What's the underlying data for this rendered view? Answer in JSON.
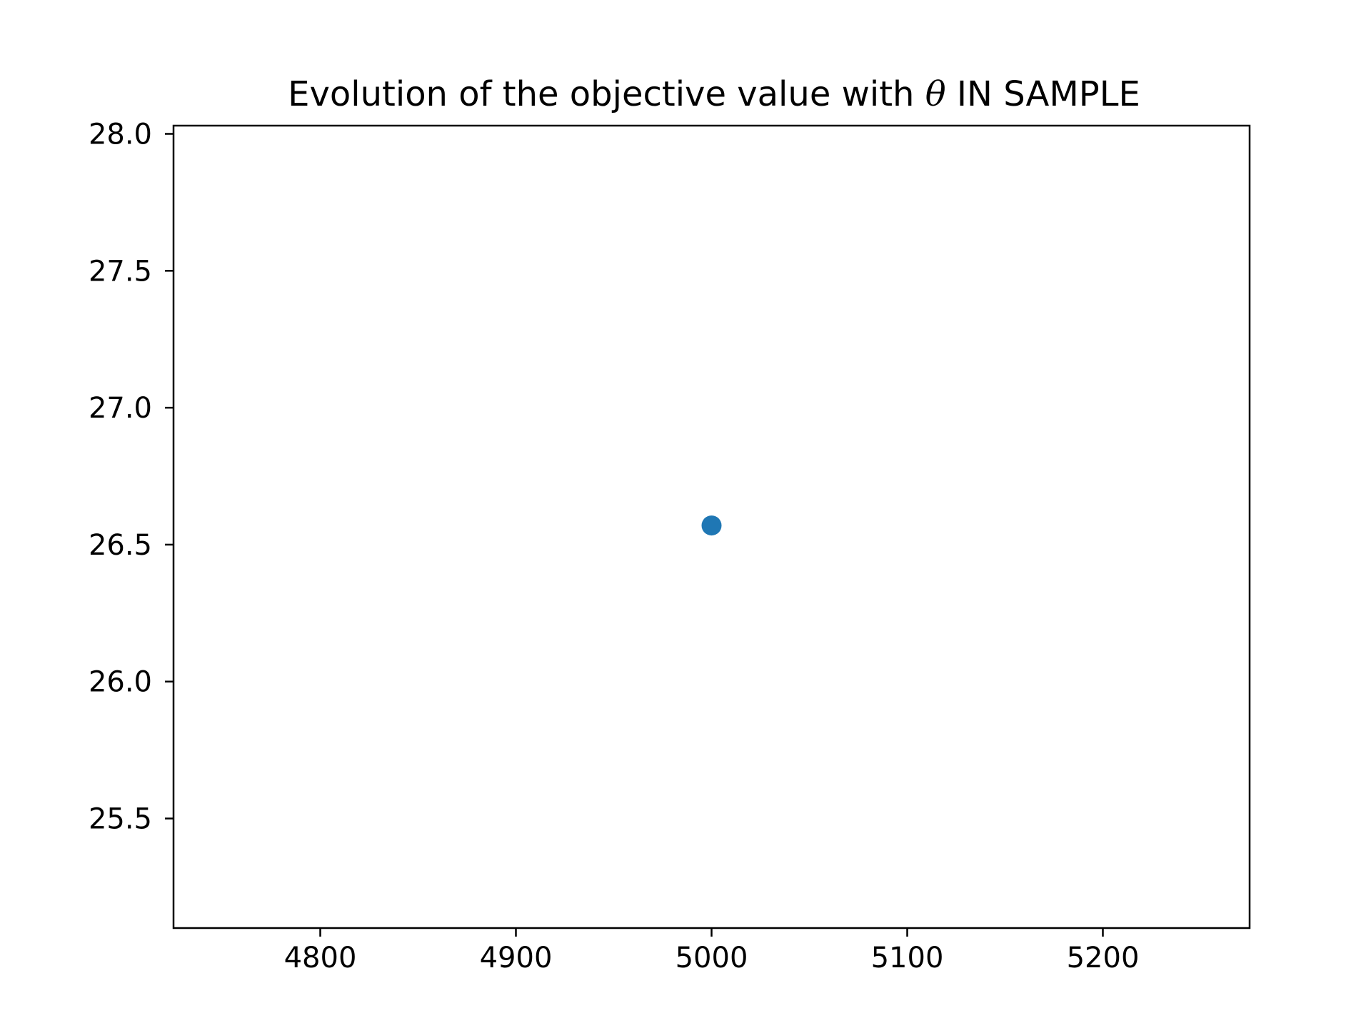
{
  "chart_data": {
    "type": "scatter",
    "title": {
      "before": "Evolution of the objective value with ",
      "symbol": "θ",
      "after": " IN SAMPLE"
    },
    "xlabel": "",
    "ylabel": "",
    "xlim": [
      4725,
      5275
    ],
    "ylim": [
      25.1,
      28.03
    ],
    "x_ticks": [
      {
        "value": 4800,
        "label": "4800"
      },
      {
        "value": 4900,
        "label": "4900"
      },
      {
        "value": 5000,
        "label": "5000"
      },
      {
        "value": 5100,
        "label": "5100"
      },
      {
        "value": 5200,
        "label": "5200"
      }
    ],
    "y_ticks": [
      {
        "value": 25.5,
        "label": "25.5"
      },
      {
        "value": 26.0,
        "label": "26.0"
      },
      {
        "value": 26.5,
        "label": "26.5"
      },
      {
        "value": 27.0,
        "label": "27.0"
      },
      {
        "value": 27.5,
        "label": "27.5"
      },
      {
        "value": 28.0,
        "label": "28.0"
      }
    ],
    "series": [
      {
        "color": "#1f77b4",
        "points": [
          {
            "x": 5000,
            "y": 26.57
          }
        ]
      }
    ],
    "grid": false,
    "legend": "none"
  }
}
